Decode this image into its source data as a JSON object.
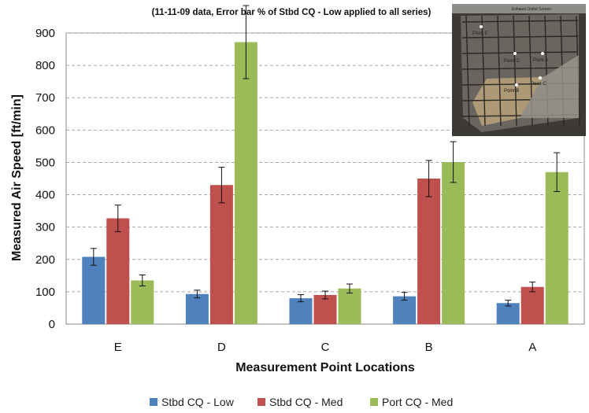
{
  "chart_data": {
    "type": "bar",
    "title": "(11-11-09 data, Error bar % of Stbd CQ - Low applied to all series)",
    "xlabel": "Measurement Point Locations",
    "ylabel": "Measured Air Speed [ft/min]",
    "ylim": [
      0,
      900
    ],
    "yticks": [
      "0",
      "100",
      "200",
      "300",
      "400",
      "500",
      "600",
      "700",
      "800",
      "900"
    ],
    "grid": "horizontal dashed",
    "legend_position": "bottom",
    "categories": [
      "E",
      "D",
      "C",
      "B",
      "A"
    ],
    "series": [
      {
        "name": "Stbd CQ - Low",
        "color": "#4f81bd",
        "values": [
          208,
          93,
          80,
          86,
          65
        ],
        "error": [
          26,
          12,
          11,
          12,
          9
        ]
      },
      {
        "name": "Stbd CQ - Med",
        "color": "#c0504d",
        "values": [
          327,
          430,
          90,
          450,
          115
        ],
        "error": [
          41,
          55,
          12,
          56,
          15
        ]
      },
      {
        "name": "Port CQ - Med",
        "color": "#9bbb59",
        "values": [
          135,
          872,
          110,
          501,
          470
        ],
        "error": [
          17,
          113,
          14,
          63,
          60
        ]
      }
    ]
  },
  "inset_photo": {
    "header_label": "Exhaust Outlet Screen",
    "point_labels": [
      "Point E",
      "Point D",
      "Point A",
      "Point B",
      "Point C"
    ]
  }
}
